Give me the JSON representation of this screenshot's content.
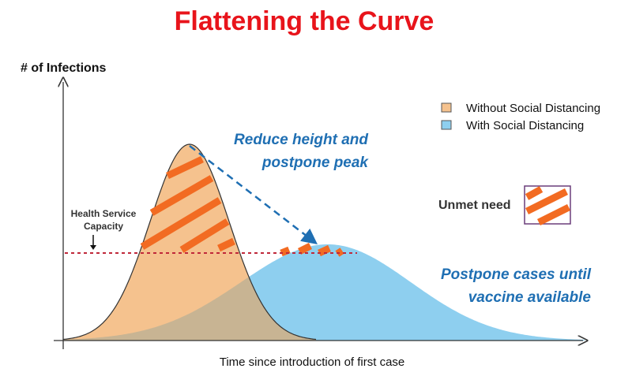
{
  "title": "Flattening the Curve",
  "y_axis_label": "# of Infections",
  "x_axis_label": "Time since introduction of first case",
  "legend": [
    {
      "label": "Without Social Distancing",
      "color": "#f5c28e"
    },
    {
      "label": "With Social Distancing",
      "color": "#8ecfef"
    }
  ],
  "annotations": {
    "reduce_line1": "Reduce height and",
    "reduce_line2": "postpone peak",
    "postpone_line1": "Postpone cases until",
    "postpone_line2": "vaccine available",
    "capacity_line1": "Health Service",
    "capacity_line2": "Capacity",
    "unmet_need": "Unmet need"
  },
  "colors": {
    "title": "#e8141b",
    "annotation": "#1f6fb3",
    "hatch": "#f26b22",
    "capacity_line": "#c0283a",
    "overlap": "#c8b493"
  }
}
